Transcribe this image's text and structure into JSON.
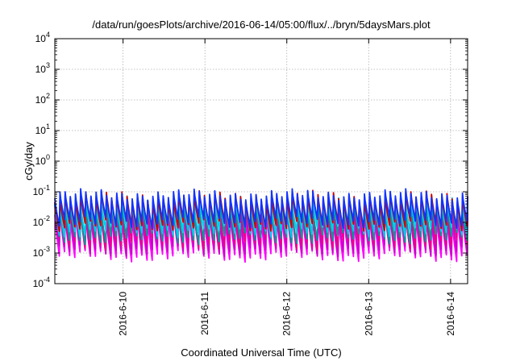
{
  "chart_data": {
    "type": "line",
    "title": "/data/run/goesPlots/archive/2016-06-14/05:00/flux/../bryn/5daysMars.plot",
    "xlabel": "Coordinated Universal Time (UTC)",
    "ylabel": "cGy/day",
    "yscale": "log",
    "ylim": [
      0.0001,
      10000
    ],
    "y_ticks": [
      {
        "base": "10",
        "exp": "-4",
        "value": 0.0001
      },
      {
        "base": "10",
        "exp": "-3",
        "value": 0.001
      },
      {
        "base": "10",
        "exp": "-2",
        "value": 0.01
      },
      {
        "base": "10",
        "exp": "-1",
        "value": 0.1
      },
      {
        "base": "10",
        "exp": "0",
        "value": 1
      },
      {
        "base": "10",
        "exp": "1",
        "value": 10
      },
      {
        "base": "10",
        "exp": "2",
        "value": 100
      },
      {
        "base": "10",
        "exp": "3",
        "value": 1000
      },
      {
        "base": "10",
        "exp": "4",
        "value": 10000
      }
    ],
    "xlim": [
      "2016-06-09 04:00",
      "2016-06-14 05:00"
    ],
    "x_ticks": [
      "2016-6-10",
      "2016-6-11",
      "2016-6-12",
      "2016-6-13",
      "2016-6-14"
    ],
    "grid": true,
    "legend": "none",
    "pattern": {
      "description": "sawtooth, rising approximately every 90 minutes",
      "cycles": 80,
      "note": "values approximate; each series oscillates periodically"
    },
    "series": [
      {
        "color": "#ff00ff",
        "peak": 0.018,
        "trough": 0.0008
      },
      {
        "color": "#cc00cc",
        "peak": 0.025,
        "trough": 0.0012
      },
      {
        "color": "#ee0088",
        "peak": 0.03,
        "trough": 0.002
      },
      {
        "color": "#009999",
        "peak": 0.035,
        "trough": 0.003
      },
      {
        "color": "#00ccee",
        "peak": 0.05,
        "trough": 0.005
      },
      {
        "color": "#cc0000",
        "peak": 0.07,
        "trough": 0.008
      },
      {
        "color": "#1133ff",
        "peak": 0.08,
        "trough": 0.01
      }
    ]
  }
}
